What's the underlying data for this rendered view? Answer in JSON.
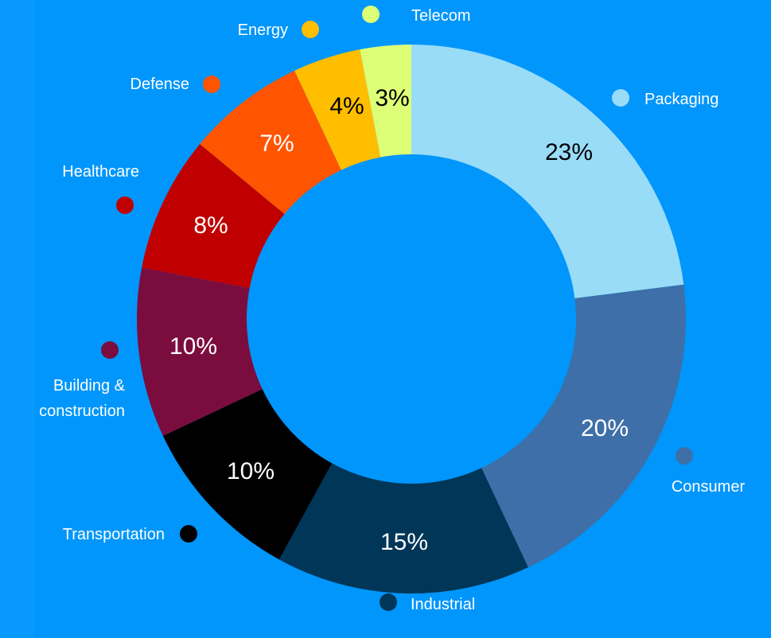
{
  "chart_data": {
    "type": "donut",
    "categories": [
      "Packaging",
      "Consumer",
      "Industrial",
      "Transportation",
      "Building & construction",
      "Healthcare",
      "Defense",
      "Energy",
      "Telecom"
    ],
    "values": [
      23,
      20,
      15,
      10,
      10,
      8,
      7,
      4,
      3
    ],
    "value_labels": [
      "23%",
      "20%",
      "15%",
      "10%",
      "10%",
      "8%",
      "7%",
      "4%",
      "3%"
    ],
    "colors": [
      "#99dcf8",
      "#3e6fa8",
      "#003658",
      "#000000",
      "#7b0c3e",
      "#c00000",
      "#ff5500",
      "#ffbe00",
      "#ddff77"
    ],
    "value_label_colors": [
      "#000000",
      "#ffffff",
      "#ffffff",
      "#ffffff",
      "#ffffff",
      "#ffffff",
      "#ffffff",
      "#000000",
      "#000000"
    ]
  }
}
